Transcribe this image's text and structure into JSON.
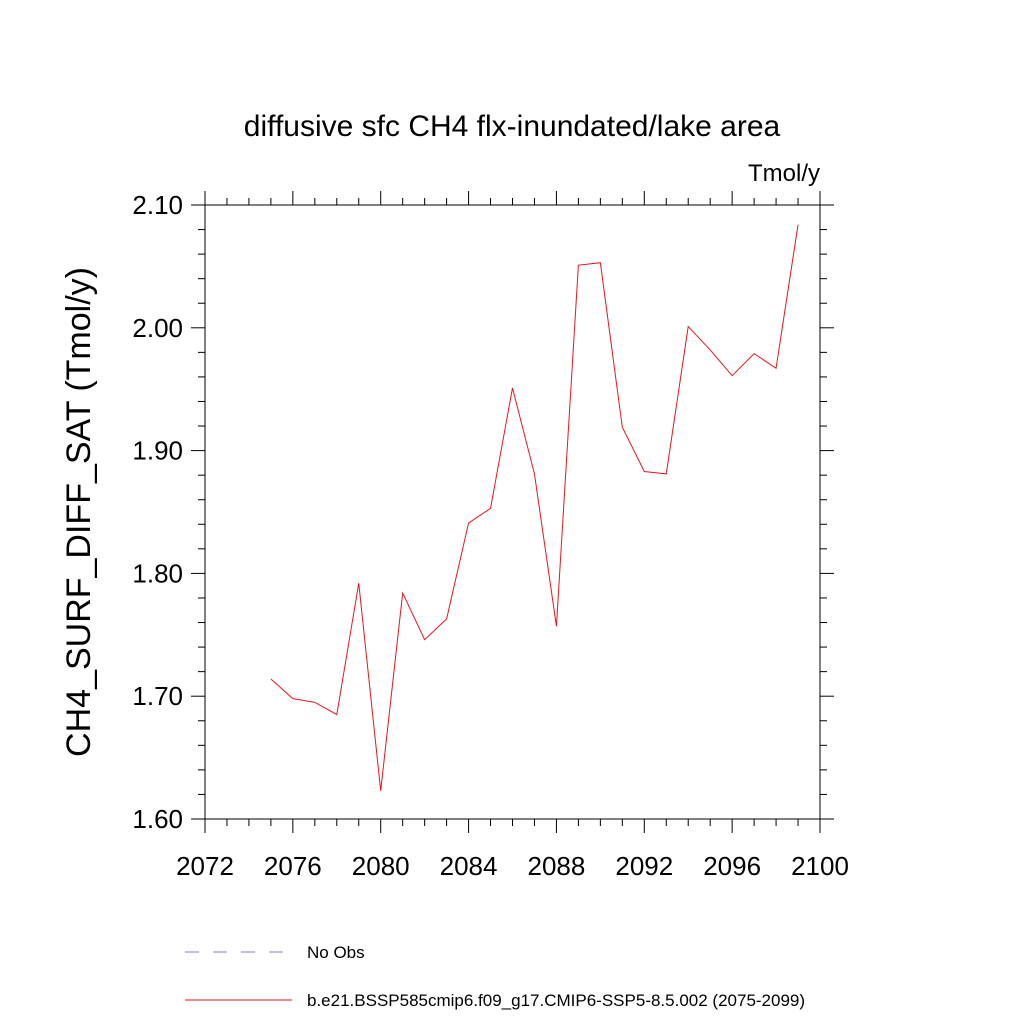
{
  "chart_data": {
    "type": "line",
    "title": "diffusive sfc CH4 flx-inundated/lake area",
    "units": "Tmol/y",
    "ylabel": "CH4_SURF_DIFF_SAT  (Tmol/y)",
    "xlabel": "",
    "xlim": [
      2072,
      2100
    ],
    "ylim": [
      1.6,
      2.1
    ],
    "x_ticks": [
      2072,
      2076,
      2080,
      2084,
      2088,
      2092,
      2096,
      2100
    ],
    "x_tick_labels": [
      "2072",
      "2076",
      "2080",
      "2084",
      "2088",
      "2092",
      "2096",
      "2100"
    ],
    "y_ticks": [
      1.6,
      1.7,
      1.8,
      1.9,
      2.0,
      2.1
    ],
    "y_tick_labels": [
      "1.60",
      "1.70",
      "1.80",
      "1.90",
      "2.00",
      "2.10"
    ],
    "grid": false,
    "legend_position": "bottom",
    "series": [
      {
        "name": "b.e21.BSSP585cmip6.f09_g17.CMIP6-SSP5-8.5.002 (2075-2099)",
        "color": "#e8141c",
        "style": "solid",
        "x": [
          2075,
          2076,
          2077,
          2078,
          2079,
          2080,
          2081,
          2082,
          2083,
          2084,
          2085,
          2086,
          2087,
          2088,
          2089,
          2090,
          2091,
          2092,
          2093,
          2094,
          2095,
          2096,
          2097,
          2098,
          2099
        ],
        "y": [
          1.714,
          1.698,
          1.695,
          1.685,
          1.792,
          1.623,
          1.784,
          1.746,
          1.763,
          1.841,
          1.853,
          1.951,
          1.881,
          1.757,
          2.051,
          2.053,
          1.919,
          1.883,
          1.881,
          2.001,
          1.982,
          1.961,
          1.979,
          1.967,
          2.084
        ]
      }
    ],
    "legend": [
      {
        "label": "No Obs",
        "color": "#8080c0",
        "style": "dashed"
      },
      {
        "label": "b.e21.BSSP585cmip6.f09_g17.CMIP6-SSP5-8.5.002 (2075-2099)",
        "color": "#e8141c",
        "style": "solid"
      }
    ]
  }
}
